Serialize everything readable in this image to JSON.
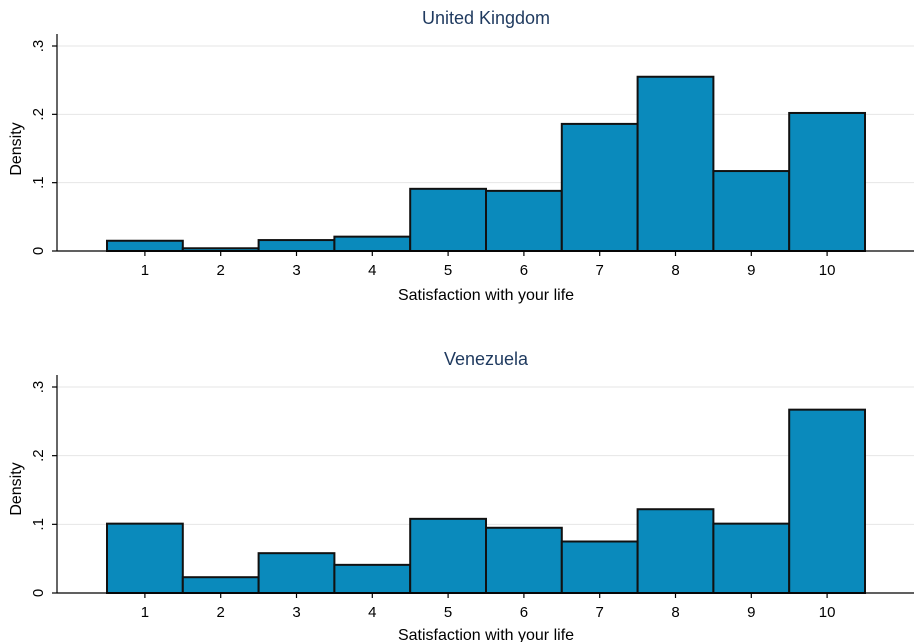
{
  "colors": {
    "bar_fill": "#0a8abc",
    "bar_stroke": "#111111",
    "title": "#1f3a5f",
    "grid": "#e6e6e6"
  },
  "chart_data": [
    {
      "type": "bar",
      "title": "United Kingdom",
      "xlabel": "Satisfaction with your life",
      "ylabel": "Density",
      "categories": [
        "1",
        "2",
        "3",
        "4",
        "5",
        "6",
        "7",
        "8",
        "9",
        "10"
      ],
      "values": [
        0.015,
        0.004,
        0.016,
        0.021,
        0.091,
        0.088,
        0.186,
        0.255,
        0.117,
        0.202
      ],
      "ylim": [
        0,
        0.3
      ],
      "yticks": [
        0,
        0.1,
        0.2,
        0.3
      ],
      "ytick_labels": [
        "0",
        ".1",
        ".2",
        ".3"
      ],
      "grid": true
    },
    {
      "type": "bar",
      "title": "Venezuela",
      "xlabel": "Satisfaction with your life",
      "ylabel": "Density",
      "categories": [
        "1",
        "2",
        "3",
        "4",
        "5",
        "6",
        "7",
        "8",
        "9",
        "10"
      ],
      "values": [
        0.101,
        0.023,
        0.058,
        0.041,
        0.108,
        0.095,
        0.075,
        0.122,
        0.101,
        0.267
      ],
      "ylim": [
        0,
        0.3
      ],
      "yticks": [
        0,
        0.1,
        0.2,
        0.3
      ],
      "ytick_labels": [
        "0",
        ".1",
        ".2",
        ".3"
      ],
      "grid": true
    }
  ]
}
